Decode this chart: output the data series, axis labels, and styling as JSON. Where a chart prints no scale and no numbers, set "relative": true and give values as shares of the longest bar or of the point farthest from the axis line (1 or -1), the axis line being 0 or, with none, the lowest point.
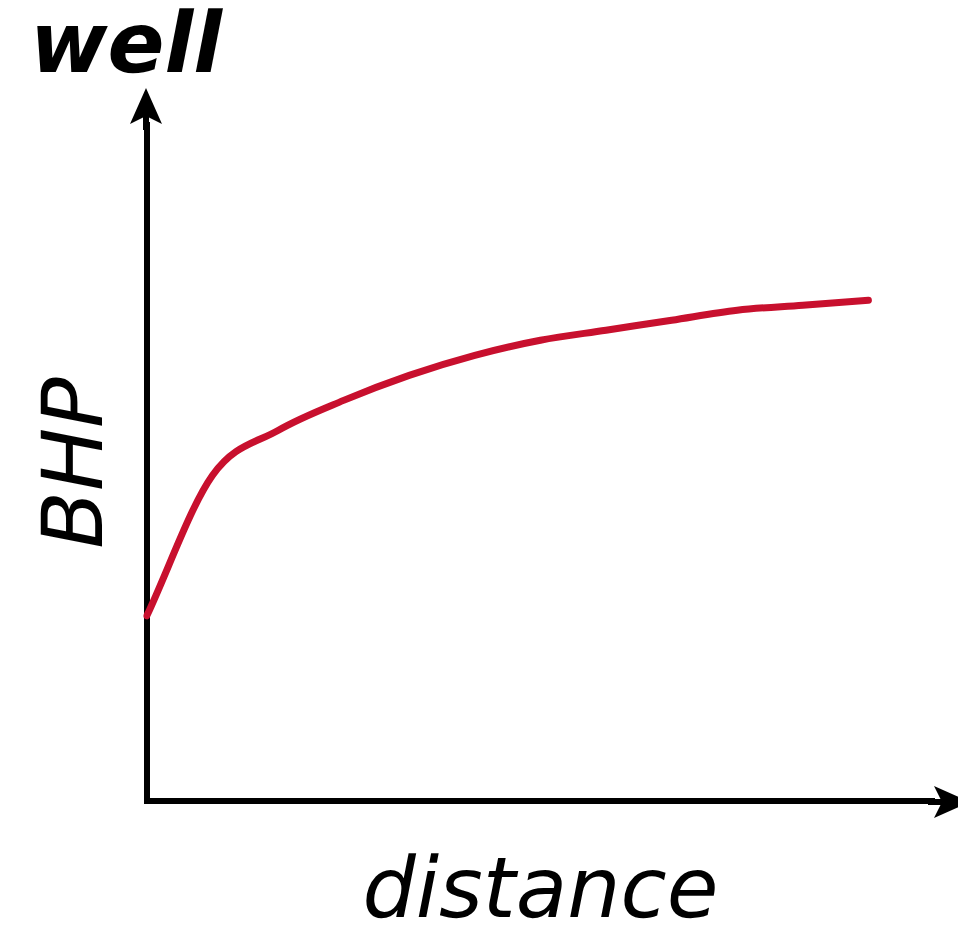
{
  "chart_data": {
    "type": "line",
    "title": "well",
    "xlabel": "distance",
    "ylabel": "BHP",
    "relative": true,
    "grid": false,
    "legend": false,
    "marker": "none",
    "line_style": "solid",
    "categories": [
      null,
      null,
      null,
      null,
      null,
      null,
      null,
      null,
      null,
      null,
      null,
      null,
      null
    ],
    "series": [
      {
        "color": "#c8102e",
        "values": [
          0.37,
          0.65,
          0.74,
          0.8,
          0.85,
          0.89,
          0.92,
          0.94,
          0.96,
          0.98,
          0.99,
          1,
          null
        ]
      }
    ]
  }
}
